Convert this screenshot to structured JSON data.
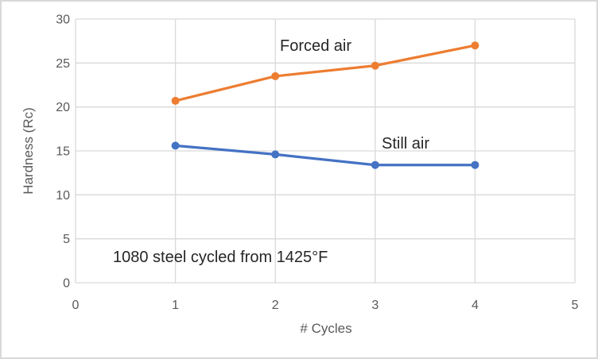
{
  "chart_data": {
    "type": "line",
    "title": "",
    "xlabel": "# Cycles",
    "ylabel": "Hardness (Rc)",
    "xlim": [
      0,
      5
    ],
    "ylim": [
      0,
      30
    ],
    "x_ticks": [
      0,
      1,
      2,
      3,
      4,
      5
    ],
    "y_ticks": [
      0,
      5,
      10,
      15,
      20,
      25,
      30
    ],
    "grid": true,
    "legend_position": "inline-labels",
    "x": [
      1,
      2,
      3,
      4
    ],
    "series": [
      {
        "name": "Forced air",
        "color": "#ED7D31",
        "values": [
          20.7,
          23.5,
          24.7,
          27.0
        ]
      },
      {
        "name": "Still air",
        "color": "#4472C4",
        "values": [
          15.6,
          14.6,
          13.4,
          13.4
        ]
      }
    ],
    "annotation": "1080 steel cycled from 1425°F",
    "colors": {
      "gridline": "#D9D9D9",
      "axis_text": "#595959",
      "label_text": "#262626",
      "background": "#FFFFFF",
      "border": "#D9D9D9"
    }
  }
}
